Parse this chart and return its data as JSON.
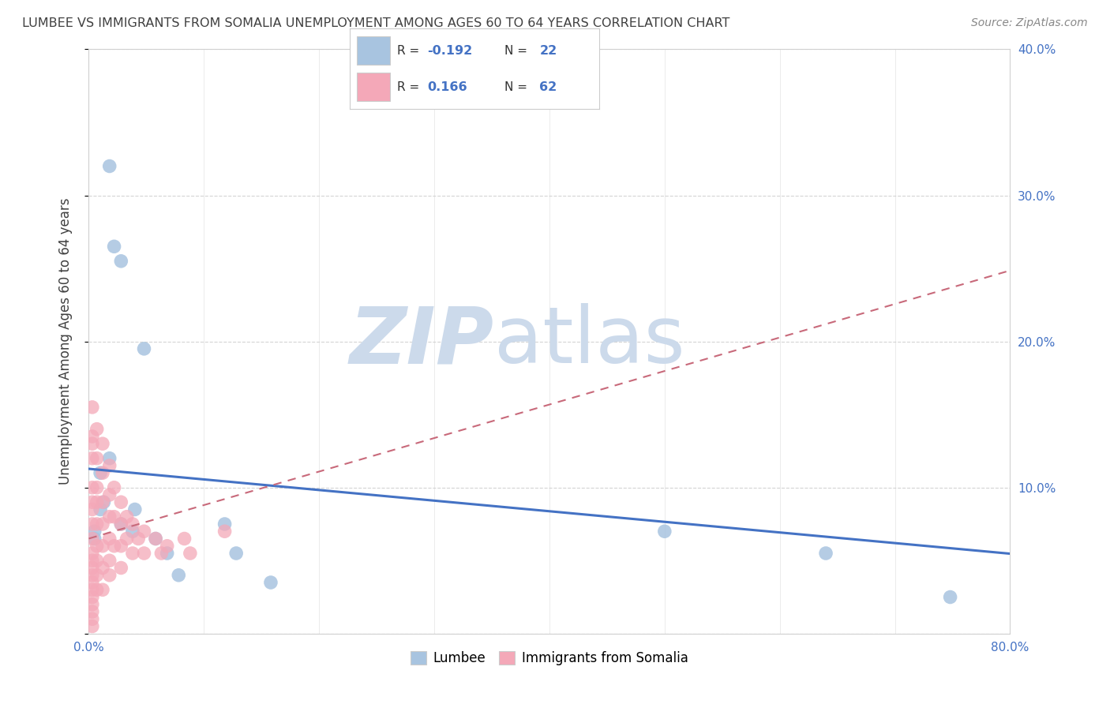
{
  "title": "LUMBEE VS IMMIGRANTS FROM SOMALIA UNEMPLOYMENT AMONG AGES 60 TO 64 YEARS CORRELATION CHART",
  "source": "Source: ZipAtlas.com",
  "ylabel": "Unemployment Among Ages 60 to 64 years",
  "xlim": [
    0.0,
    0.8
  ],
  "ylim": [
    0.0,
    0.4
  ],
  "yticks": [
    0.0,
    0.1,
    0.2,
    0.3,
    0.4
  ],
  "right_ytick_labels": [
    "",
    "10.0%",
    "20.0%",
    "30.0%",
    "40.0%"
  ],
  "lumbee_color": "#a8c4e0",
  "somalia_color": "#f4a8b8",
  "lumbee_line_color": "#4472c4",
  "somalia_line_color": "#c8697a",
  "lumbee_R": -0.192,
  "lumbee_N": 22,
  "somalia_R": 0.166,
  "somalia_N": 62,
  "watermark_zip": "ZIP",
  "watermark_atlas": "atlas",
  "watermark_color": "#ccdaeb",
  "lumbee_x": [
    0.018,
    0.022,
    0.028,
    0.048,
    0.018,
    0.01,
    0.013,
    0.01,
    0.005,
    0.005,
    0.028,
    0.038,
    0.04,
    0.058,
    0.068,
    0.078,
    0.118,
    0.128,
    0.158,
    0.5,
    0.64,
    0.748
  ],
  "lumbee_y": [
    0.32,
    0.265,
    0.255,
    0.195,
    0.12,
    0.11,
    0.09,
    0.085,
    0.07,
    0.065,
    0.075,
    0.07,
    0.085,
    0.065,
    0.055,
    0.04,
    0.075,
    0.055,
    0.035,
    0.07,
    0.055,
    0.025
  ],
  "somalia_x": [
    0.003,
    0.003,
    0.003,
    0.003,
    0.003,
    0.003,
    0.003,
    0.003,
    0.003,
    0.003,
    0.003,
    0.003,
    0.003,
    0.003,
    0.003,
    0.003,
    0.003,
    0.003,
    0.003,
    0.003,
    0.007,
    0.007,
    0.007,
    0.007,
    0.007,
    0.007,
    0.007,
    0.007,
    0.007,
    0.012,
    0.012,
    0.012,
    0.012,
    0.012,
    0.012,
    0.012,
    0.018,
    0.018,
    0.018,
    0.018,
    0.018,
    0.018,
    0.022,
    0.022,
    0.022,
    0.028,
    0.028,
    0.028,
    0.028,
    0.033,
    0.033,
    0.038,
    0.038,
    0.043,
    0.048,
    0.048,
    0.058,
    0.063,
    0.068,
    0.083,
    0.088,
    0.118
  ],
  "somalia_y": [
    0.155,
    0.135,
    0.13,
    0.12,
    0.1,
    0.09,
    0.085,
    0.075,
    0.065,
    0.055,
    0.05,
    0.045,
    0.04,
    0.035,
    0.03,
    0.025,
    0.02,
    0.015,
    0.01,
    0.005,
    0.14,
    0.12,
    0.1,
    0.09,
    0.075,
    0.06,
    0.05,
    0.04,
    0.03,
    0.13,
    0.11,
    0.09,
    0.075,
    0.06,
    0.045,
    0.03,
    0.115,
    0.095,
    0.08,
    0.065,
    0.05,
    0.04,
    0.1,
    0.08,
    0.06,
    0.09,
    0.075,
    0.06,
    0.045,
    0.08,
    0.065,
    0.075,
    0.055,
    0.065,
    0.07,
    0.055,
    0.065,
    0.055,
    0.06,
    0.065,
    0.055,
    0.07
  ],
  "background_color": "#ffffff",
  "grid_color": "#d0d0d0",
  "title_color": "#404040",
  "tick_color": "#4472c4",
  "legend_text_color": "#4472c4"
}
